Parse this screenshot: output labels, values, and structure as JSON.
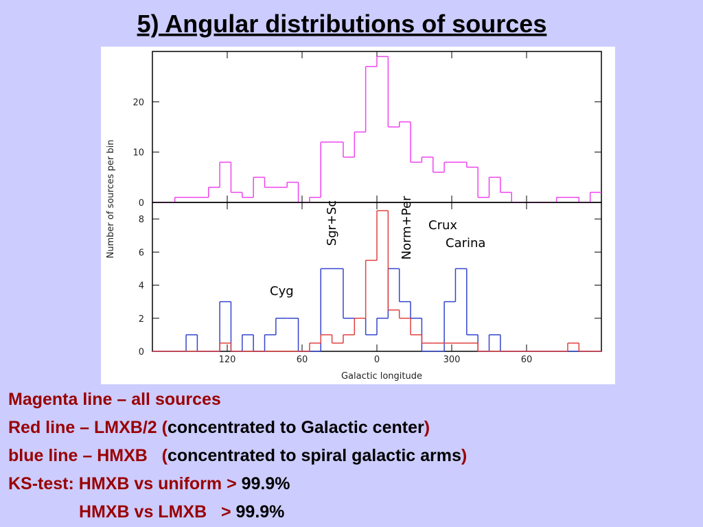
{
  "title": "5) Angular distributions of sources",
  "chart_data": [
    {
      "type": "histogram",
      "bins": [
        180,
        171,
        162,
        153,
        144,
        135,
        126,
        117,
        108,
        99,
        90,
        81,
        72,
        63,
        54,
        45,
        36,
        27,
        18,
        9,
        0,
        -9,
        -18,
        -27,
        -36,
        -45,
        -54,
        -63,
        -72,
        -81,
        -90,
        -99,
        -108,
        -117,
        -126,
        -135,
        -144,
        -153,
        -162,
        -171,
        -180
      ],
      "xlim": [
        180,
        -180
      ],
      "ylim": [
        0,
        30
      ],
      "yticks": [
        0,
        10,
        20
      ],
      "series": [
        {
          "name": "Magenta line",
          "color": "#ee44ee",
          "values": [
            0,
            0,
            1,
            1,
            1,
            3,
            8,
            2,
            1,
            5,
            3,
            3,
            4,
            0,
            1,
            12,
            12,
            9,
            14,
            27,
            29,
            15,
            16,
            8,
            9,
            6,
            8,
            8,
            7,
            1,
            5,
            2,
            0,
            0,
            0,
            0,
            1,
            1,
            0,
            2
          ]
        }
      ]
    },
    {
      "type": "histogram",
      "bins": [
        180,
        171,
        162,
        153,
        144,
        135,
        126,
        117,
        108,
        99,
        90,
        81,
        72,
        63,
        54,
        45,
        36,
        27,
        18,
        9,
        0,
        -9,
        -18,
        -27,
        -36,
        -45,
        -54,
        -63,
        -72,
        -81,
        -90,
        -99,
        -108,
        -117,
        -126,
        -135,
        -144,
        -153,
        -162,
        -171,
        -180
      ],
      "xlim": [
        180,
        -180
      ],
      "ylim": [
        0,
        9
      ],
      "yticks": [
        0,
        2,
        4,
        6,
        8
      ],
      "xticks": [
        120,
        60,
        0,
        {
          "value": -60,
          "label": "300"
        },
        {
          "value": -120,
          "label": "60"
        }
      ],
      "xlabel": "Galactic longitude",
      "ylabel": "Number of sources per bin",
      "series": [
        {
          "name": "blue line",
          "color": "#3344cc",
          "values": [
            0,
            0,
            0,
            1,
            0,
            0,
            3,
            0,
            1,
            0,
            1,
            2,
            2,
            0,
            0,
            5,
            5,
            2,
            2,
            1,
            2,
            5,
            3,
            2,
            0,
            0,
            3,
            5,
            1,
            0,
            1,
            0,
            0,
            0,
            0,
            0,
            0,
            0,
            0,
            0
          ]
        },
        {
          "name": "Red line",
          "color": "#e04040",
          "values": [
            0,
            0,
            0,
            0,
            0,
            0,
            0.5,
            0,
            0,
            0,
            0,
            0,
            0,
            0,
            0.5,
            1,
            0.5,
            1,
            2,
            5.5,
            8.5,
            2.5,
            2,
            1,
            0.5,
            0.5,
            0.5,
            0.5,
            0.5,
            0,
            0,
            0,
            0,
            0,
            0,
            0,
            0,
            0.5,
            0,
            0
          ]
        }
      ],
      "annotations": [
        "Sgr+Sc",
        "Norm+Per",
        "Crux",
        "Carina",
        "Cyg"
      ]
    }
  ],
  "notes": [
    [
      {
        "text": "Magenta line – all sources",
        "color": "#990000"
      }
    ],
    [
      {
        "text": "Red line – LMXB/2 (",
        "color": "#990000"
      },
      {
        "text": "concentrated to Galactic center",
        "color": "#000000"
      },
      {
        "text": ")",
        "color": "#990000"
      }
    ],
    [
      {
        "text": "blue line – HMXB   (",
        "color": "#990000"
      },
      {
        "text": "concentrated to spiral galactic arms",
        "color": "#000000"
      },
      {
        "text": ")",
        "color": "#990000"
      }
    ],
    [
      {
        "text": "KS-test: HMXB vs uniform > ",
        "color": "#990000"
      },
      {
        "text": "99.9%",
        "color": "#000000"
      }
    ],
    [
      {
        "text": "HMXB vs LMXB   > ",
        "color": "#990000"
      },
      {
        "text": "99.9%",
        "color": "#000000"
      }
    ]
  ]
}
